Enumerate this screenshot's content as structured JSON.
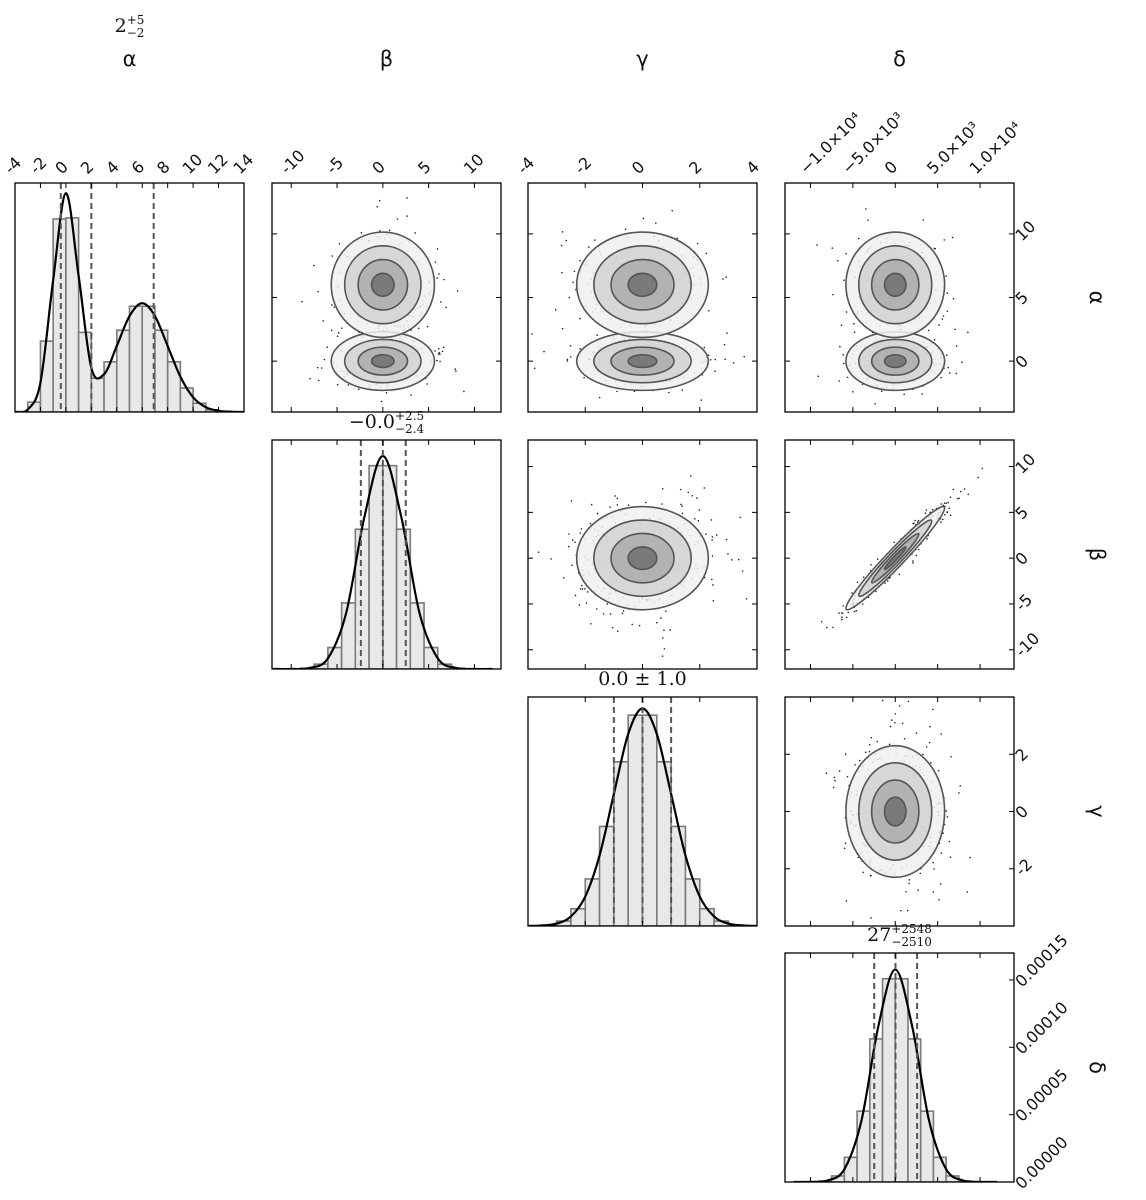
{
  "chart_data": {
    "type": "corner",
    "params": [
      {
        "name": "α",
        "range": [
          -4,
          14
        ],
        "xticks": [
          -4,
          -2,
          0,
          2,
          4,
          6,
          8,
          10,
          12,
          14
        ],
        "yticks": [
          0,
          5,
          10
        ],
        "summary": {
          "median": "2",
          "plus": "+5",
          "minus": "−2"
        },
        "quantiles": [
          -0.4,
          2.0,
          6.9
        ],
        "hist": {
          "bins": [
            -4,
            -3,
            -2,
            -1,
            0,
            1,
            2,
            3,
            4,
            5,
            6,
            7,
            8,
            9,
            10,
            11,
            12,
            13
          ],
          "counts": [
            0.0005,
            0.009,
            0.065,
            0.177,
            0.178,
            0.073,
            0.031,
            0.046,
            0.075,
            0.097,
            0.097,
            0.075,
            0.046,
            0.022,
            0.008,
            0.002,
            0.0005
          ],
          "ylim": [
            0,
            0.21
          ]
        },
        "kde": {
          "x": [
            -4,
            -3,
            -2,
            -1,
            0,
            1,
            2,
            3,
            4,
            5,
            6,
            7,
            8,
            9,
            10,
            11,
            12,
            13,
            14
          ],
          "y": [
            0.0,
            0.0022,
            0.027,
            0.121,
            0.2006,
            0.125,
            0.0405,
            0.0346,
            0.0606,
            0.088,
            0.0998,
            0.088,
            0.0605,
            0.0324,
            0.0135,
            0.0044,
            0.0011,
            0.0003,
            0.0
          ]
        },
        "joint": [
          [
            {
              "x": 0,
              "y": 0,
              "sx": 2.45,
              "sy": 1,
              "rho": 0,
              "w": 0.5
            },
            {
              "x": 0,
              "y": 6,
              "sx": 2.45,
              "sy": 1.8,
              "rho": 0,
              "w": 0.5
            }
          ],
          [
            {
              "x": 0,
              "y": 0,
              "sx": 1,
              "sy": 1,
              "rho": 0,
              "w": 0.5
            },
            {
              "x": 0,
              "y": 6,
              "sx": 1,
              "sy": 1.8,
              "rho": 0,
              "w": 0.5
            }
          ],
          [
            {
              "x": 0,
              "y": 0,
              "sx": 2530,
              "sy": 1,
              "rho": 0,
              "w": 0.5
            },
            {
              "x": 0,
              "y": 6,
              "sx": 2530,
              "sy": 1.8,
              "rho": 0,
              "w": 0.5
            }
          ]
        ]
      },
      {
        "name": "β",
        "range": [
          -12.1,
          12.9
        ],
        "xticks": [
          -10,
          -5,
          0,
          5,
          10
        ],
        "yticks": [
          -10,
          -5,
          0,
          5,
          10
        ],
        "summary": {
          "median": "−0.0",
          "plus": "+2.5",
          "minus": "−2.4"
        },
        "quantiles": [
          -2.4,
          0.0,
          2.5
        ],
        "hist": {
          "bins": [
            -12,
            -10.5,
            -9,
            -7.5,
            -6,
            -4.5,
            -3,
            -1.5,
            0,
            1.5,
            3,
            4.5,
            6,
            7.5,
            9,
            10.5,
            12
          ],
          "counts": [
            0,
            0.0001,
            0.0006,
            0.0037,
            0.0164,
            0.0505,
            0.1068,
            0.1554,
            0.1554,
            0.1068,
            0.0505,
            0.0164,
            0.0037,
            0.0006,
            0.0001,
            0
          ],
          "ylim": [
            0,
            0.175
          ]
        },
        "kde": {
          "x": [
            -12,
            -10,
            -8,
            -6,
            -4,
            -2,
            0,
            2,
            4,
            6,
            8,
            10,
            12
          ],
          "y": [
            0,
            0.0,
            0.0008,
            0.0081,
            0.0429,
            0.1166,
            0.1628,
            0.1166,
            0.0429,
            0.0081,
            0.0008,
            0.0,
            0
          ]
        },
        "joint": [
          [
            {
              "x": 0,
              "y": 0,
              "sx": 1,
              "sy": 2.45,
              "rho": 0,
              "w": 1
            }
          ],
          [
            {
              "x": 0,
              "y": 0,
              "sx": 2530,
              "sy": 2.45,
              "rho": 0.97,
              "w": 1
            }
          ]
        ]
      },
      {
        "name": "γ",
        "range": [
          -4,
          4
        ],
        "xticks": [
          -4,
          -2,
          0,
          2,
          4
        ],
        "yticks": [
          -2,
          0,
          2
        ],
        "summary": {
          "text": "0.0 ± 1.0"
        },
        "quantiles": [
          -1.0,
          0.0,
          1.0
        ],
        "hist": {
          "bins": [
            -4,
            -3.5,
            -3,
            -2.5,
            -2,
            -1.5,
            -1,
            -0.5,
            0,
            0.5,
            1,
            1.5,
            2,
            2.5,
            3,
            3.5,
            4
          ],
          "counts": [
            0.0004,
            0.002,
            0.0091,
            0.0317,
            0.0863,
            0.1826,
            0.3011,
            0.3867,
            0.3867,
            0.3011,
            0.1826,
            0.0863,
            0.0317,
            0.0091,
            0.002,
            0.0004
          ],
          "ylim": [
            0,
            0.42
          ]
        },
        "kde": {
          "x": [
            -4,
            -3.5,
            -3,
            -2.5,
            -2,
            -1.5,
            -1,
            -0.5,
            0,
            0.5,
            1,
            1.5,
            2,
            2.5,
            3,
            3.5,
            4
          ],
          "y": [
            0.0001,
            0.0009,
            0.0044,
            0.0175,
            0.054,
            0.1295,
            0.242,
            0.3521,
            0.3989,
            0.3521,
            0.242,
            0.1295,
            0.054,
            0.0175,
            0.0044,
            0.0009,
            0.0001
          ]
        },
        "joint": [
          [
            {
              "x": 0,
              "y": 0,
              "sx": 2530,
              "sy": 1,
              "rho": 0,
              "w": 1
            }
          ]
        ]
      },
      {
        "name": "δ",
        "range": [
          -13000,
          14000
        ],
        "xticks": [
          {
            "value": -10000,
            "label": "−1.0×10⁴"
          },
          {
            "value": -5000,
            "label": "−5.0×10³"
          },
          0,
          {
            "value": 5000,
            "label": "5.0×10³"
          },
          {
            "value": 10000,
            "label": "1.0×10⁴"
          }
        ],
        "summary": {
          "median": "27",
          "plus": "+2548",
          "minus": "−2510"
        },
        "quantiles": [
          -2483,
          27,
          2575
        ],
        "hist": {
          "bins": [
            -12000,
            -10500,
            -9000,
            -7500,
            -6000,
            -4500,
            -3000,
            -1500,
            0,
            1500,
            3000,
            4500,
            6000,
            7500,
            9000,
            10500,
            12000
          ],
          "counts": [
            0,
            1e-07,
            8e-07,
            4.5e-06,
            1.83e-05,
            5.26e-05,
            0.0001062,
            0.0001509,
            0.0001509,
            0.0001062,
            5.26e-05,
            1.83e-05,
            4.5e-06,
            8e-07,
            1e-07,
            0
          ],
          "ylim": [
            0,
            0.00017
          ],
          "yticks": [
            {
              "value": 0,
              "label": "0.00000"
            },
            {
              "value": 5e-05,
              "label": "0.00005"
            },
            {
              "value": 0.0001,
              "label": "0.00010"
            },
            {
              "value": 0.00015,
              "label": "0.00015"
            }
          ]
        },
        "kde": {
          "x": [
            -12000,
            -10000,
            -8000,
            -6000,
            -4000,
            -2000,
            0,
            2000,
            4000,
            6000,
            8000,
            10000,
            12000
          ],
          "y": [
            0,
            1e-07,
            1.1e-06,
            9.5e-06,
            4.52e-05,
            0.0001154,
            0.0001577,
            0.0001154,
            4.52e-05,
            9.5e-06,
            1.1e-06,
            1e-07,
            0
          ]
        },
        "joint": []
      }
    ]
  }
}
